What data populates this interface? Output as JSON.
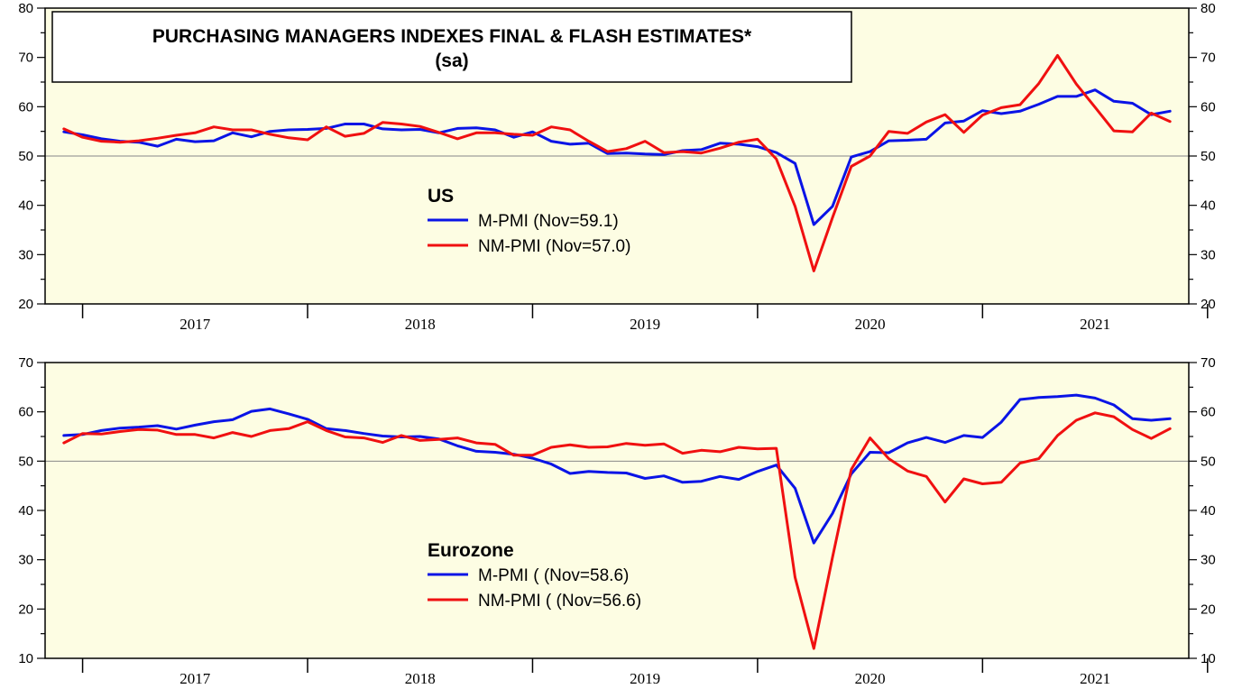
{
  "title_line1": "PURCHASING MANAGERS INDEXES FINAL & FLASH ESTIMATES*",
  "title_line2": "(sa)",
  "colors": {
    "background": "#fdfde3",
    "m_pmi": "#0a14e6",
    "nm_pmi": "#f01010",
    "reference": "#888888"
  },
  "chart_data": [
    {
      "type": "line",
      "legend_title": "US",
      "x_start": "2016-11",
      "x_end": "2021-12",
      "x_ticks": [
        "2017",
        "2018",
        "2019",
        "2020",
        "2021"
      ],
      "ylim": [
        20,
        80
      ],
      "y_ticks": [
        20,
        30,
        40,
        50,
        60,
        70,
        80
      ],
      "reference_line": 50,
      "x": [
        "2016-12",
        "2017-01",
        "2017-02",
        "2017-03",
        "2017-04",
        "2017-05",
        "2017-06",
        "2017-07",
        "2017-08",
        "2017-09",
        "2017-10",
        "2017-11",
        "2017-12",
        "2018-01",
        "2018-02",
        "2018-03",
        "2018-04",
        "2018-05",
        "2018-06",
        "2018-07",
        "2018-08",
        "2018-09",
        "2018-10",
        "2018-11",
        "2018-12",
        "2019-01",
        "2019-02",
        "2019-03",
        "2019-04",
        "2019-05",
        "2019-06",
        "2019-07",
        "2019-08",
        "2019-09",
        "2019-10",
        "2019-11",
        "2019-12",
        "2020-01",
        "2020-02",
        "2020-03",
        "2020-04",
        "2020-05",
        "2020-06",
        "2020-07",
        "2020-08",
        "2020-09",
        "2020-10",
        "2020-11",
        "2020-12",
        "2021-01",
        "2021-02",
        "2021-03",
        "2021-04",
        "2021-05",
        "2021-06",
        "2021-07",
        "2021-08",
        "2021-09",
        "2021-10",
        "2021-11"
      ],
      "series": [
        {
          "name": "M-PMI (Nov=59.1)",
          "values": [
            54.9,
            54.3,
            53.5,
            53.0,
            52.8,
            52.0,
            53.4,
            52.9,
            53.1,
            54.7,
            53.9,
            55.0,
            55.3,
            55.4,
            55.6,
            56.5,
            56.5,
            55.5,
            55.3,
            55.4,
            54.7,
            55.6,
            55.7,
            55.3,
            53.8,
            54.9,
            53.0,
            52.4,
            52.6,
            50.5,
            50.6,
            50.4,
            50.3,
            51.1,
            51.3,
            52.6,
            52.4,
            51.9,
            50.7,
            48.5,
            36.1,
            39.8,
            49.8,
            50.9,
            53.1,
            53.2,
            53.4,
            56.7,
            57.1,
            59.2,
            58.6,
            59.1,
            60.5,
            62.1,
            62.1,
            63.4,
            61.1,
            60.7,
            58.4,
            59.1
          ]
        },
        {
          "name": "NM-PMI (Nov=57.0)",
          "values": [
            55.5,
            53.8,
            53.0,
            52.8,
            53.1,
            53.6,
            54.2,
            54.7,
            55.9,
            55.3,
            55.3,
            54.4,
            53.7,
            53.3,
            55.9,
            54.0,
            54.6,
            56.8,
            56.5,
            56.0,
            54.8,
            53.5,
            54.7,
            54.7,
            54.4,
            54.2,
            55.9,
            55.3,
            53.0,
            50.9,
            51.5,
            53.0,
            50.7,
            50.9,
            50.6,
            51.6,
            52.8,
            53.4,
            49.4,
            39.8,
            26.7,
            37.5,
            47.9,
            50.0,
            55.0,
            54.6,
            56.9,
            58.4,
            54.8,
            58.3,
            59.8,
            60.4,
            64.7,
            70.4,
            64.6,
            59.9,
            55.1,
            54.9,
            58.7,
            57.0
          ]
        }
      ]
    },
    {
      "type": "line",
      "legend_title": "Eurozone",
      "x_start": "2016-11",
      "x_end": "2021-12",
      "x_ticks": [
        "2017",
        "2018",
        "2019",
        "2020",
        "2021"
      ],
      "ylim": [
        10,
        70
      ],
      "y_ticks": [
        10,
        20,
        30,
        40,
        50,
        60,
        70
      ],
      "reference_line": 50,
      "x": [
        "2016-12",
        "2017-01",
        "2017-02",
        "2017-03",
        "2017-04",
        "2017-05",
        "2017-06",
        "2017-07",
        "2017-08",
        "2017-09",
        "2017-10",
        "2017-11",
        "2017-12",
        "2018-01",
        "2018-02",
        "2018-03",
        "2018-04",
        "2018-05",
        "2018-06",
        "2018-07",
        "2018-08",
        "2018-09",
        "2018-10",
        "2018-11",
        "2018-12",
        "2019-01",
        "2019-02",
        "2019-03",
        "2019-04",
        "2019-05",
        "2019-06",
        "2019-07",
        "2019-08",
        "2019-09",
        "2019-10",
        "2019-11",
        "2019-12",
        "2020-01",
        "2020-02",
        "2020-03",
        "2020-04",
        "2020-05",
        "2020-06",
        "2020-07",
        "2020-08",
        "2020-09",
        "2020-10",
        "2020-11",
        "2020-12",
        "2021-01",
        "2021-02",
        "2021-03",
        "2021-04",
        "2021-05",
        "2021-06",
        "2021-07",
        "2021-08",
        "2021-09",
        "2021-10",
        "2021-11"
      ],
      "series": [
        {
          "name": "M-PMI ( (Nov=58.6)",
          "values": [
            55.2,
            55.4,
            56.2,
            56.7,
            56.9,
            57.2,
            56.5,
            57.3,
            58.0,
            58.4,
            60.1,
            60.6,
            59.6,
            58.5,
            56.6,
            56.2,
            55.6,
            55.1,
            54.9,
            55.0,
            54.5,
            53.1,
            52.0,
            51.8,
            51.4,
            50.6,
            49.4,
            47.5,
            47.9,
            47.7,
            47.6,
            46.5,
            47.0,
            45.7,
            45.9,
            46.9,
            46.3,
            47.9,
            49.2,
            44.5,
            33.4,
            39.4,
            47.4,
            51.8,
            51.7,
            53.7,
            54.8,
            53.8,
            55.2,
            54.8,
            57.9,
            62.5,
            62.9,
            63.1,
            63.4,
            62.8,
            61.4,
            58.6,
            58.3,
            58.6
          ]
        },
        {
          "name": "NM-PMI ( (Nov=56.6)",
          "values": [
            53.7,
            55.6,
            55.5,
            56.0,
            56.4,
            56.3,
            55.4,
            55.4,
            54.7,
            55.8,
            55.0,
            56.2,
            56.6,
            58.0,
            56.2,
            54.9,
            54.7,
            53.8,
            55.2,
            54.2,
            54.4,
            54.7,
            53.7,
            53.4,
            51.2,
            51.2,
            52.8,
            53.3,
            52.8,
            52.9,
            53.6,
            53.2,
            53.5,
            51.6,
            52.2,
            51.9,
            52.8,
            52.5,
            52.6,
            26.4,
            12.0,
            30.5,
            48.3,
            54.7,
            50.5,
            48.0,
            46.9,
            41.7,
            46.4,
            45.4,
            45.7,
            49.6,
            50.5,
            55.2,
            58.3,
            59.8,
            59.0,
            56.4,
            54.6,
            56.6
          ]
        }
      ]
    }
  ]
}
